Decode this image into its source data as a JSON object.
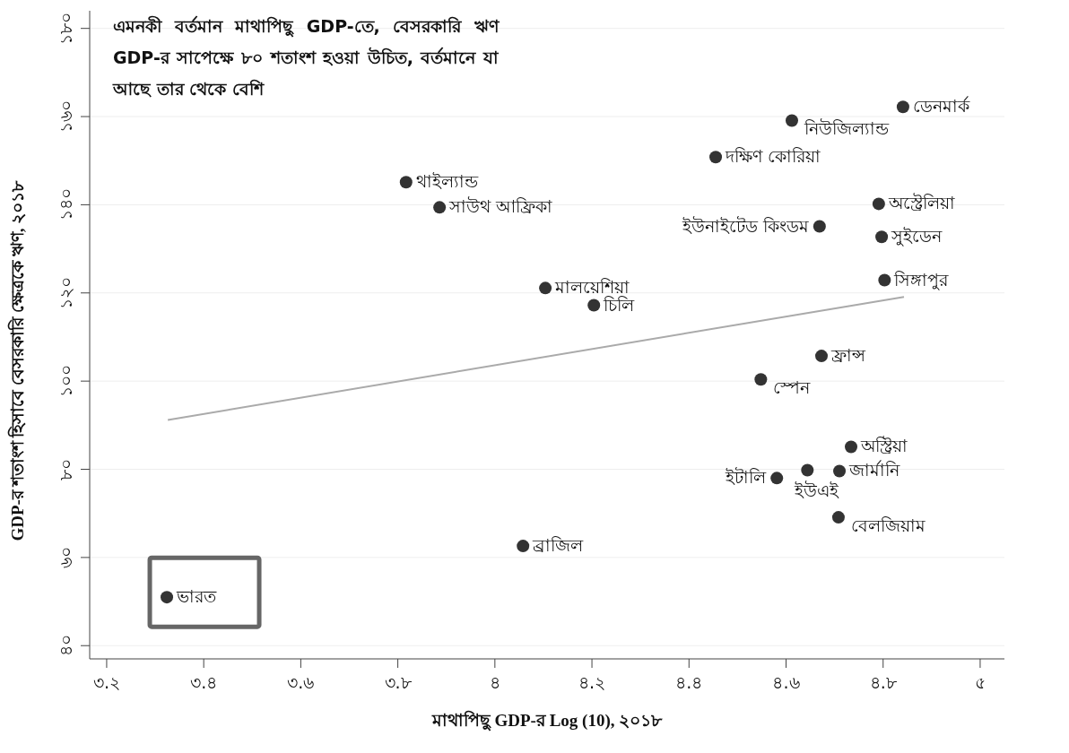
{
  "chart_data": {
    "type": "scatter",
    "title": "এমনকী বর্তমান মাথাপিছু GDP-তে, বেসরকারি ঋণ GDP-র সাপেক্ষে ৮০ শতাংশ হওয়া উচিত, বর্তমানে যা আছে তার থেকে বেশি",
    "xlabel": "মাথাপিছু GDP-র Log (10), ২০১৮",
    "ylabel": "GDP-র শতাংশ হিসাবে বেসরকারি ক্ষেত্রকে ঋণ, ২০১৮",
    "xlim": [
      3.165,
      5.05
    ],
    "xticks": [
      {
        "value": 3.2,
        "label": "৩.২"
      },
      {
        "value": 3.4,
        "label": "৩.৪"
      },
      {
        "value": 3.6,
        "label": "৩.৬"
      },
      {
        "value": 3.8,
        "label": "৩.৮"
      },
      {
        "value": 4,
        "label": "৪"
      },
      {
        "value": 4.2,
        "label": "৪.২"
      },
      {
        "value": 4.4,
        "label": "৪.৪"
      },
      {
        "value": 4.6,
        "label": "৪.৬"
      },
      {
        "value": 4.8,
        "label": "৪.৮"
      },
      {
        "value": 5,
        "label": "৫"
      }
    ],
    "ylim": [
      37,
      184
    ],
    "yticks": [
      {
        "value": 40,
        "label": "৪০"
      },
      {
        "value": 60,
        "label": "৬০"
      },
      {
        "value": 80,
        "label": "৮০"
      },
      {
        "value": 100,
        "label": "১০০"
      },
      {
        "value": 120,
        "label": "১২০"
      },
      {
        "value": 140,
        "label": "১৪০"
      },
      {
        "value": 160,
        "label": "১৬০"
      },
      {
        "value": 180,
        "label": "১৮০"
      }
    ],
    "grid": "y",
    "marker": "circle",
    "series": [
      {
        "color": "#333333",
        "x": [
          3.324,
          4.058,
          3.817,
          3.886,
          4.104,
          4.204,
          4.455,
          4.612,
          4.841,
          4.791,
          4.669,
          4.797,
          4.803,
          4.673,
          4.548,
          4.734,
          4.71,
          4.644,
          4.581,
          4.708
        ],
        "values": [
          51.0,
          62.6,
          145.1,
          139.4,
          121.1,
          117.2,
          150.8,
          159.1,
          162.2,
          140.2,
          135.1,
          132.7,
          122.9,
          105.7,
          100.4,
          85.1,
          79.6,
          79.8,
          78.0,
          69.1
        ]
      },
      {
        "type": "line",
        "marker": "none",
        "color": "#aaaaaa",
        "x": [
          3.326,
          4.843
        ],
        "values": [
          91.2,
          119.1
        ]
      }
    ],
    "annotations": [
      {
        "text": "ভারত",
        "x": 3.324,
        "y": 51.0
      },
      {
        "text": "ব্রাজিল",
        "x": 4.058,
        "y": 62.6
      },
      {
        "text": "থাইল্যান্ড",
        "x": 3.817,
        "y": 145.1
      },
      {
        "text": "সাউথ আফ্রিকা",
        "x": 3.886,
        "y": 139.4
      },
      {
        "text": "মালয়েশিয়া",
        "x": 4.104,
        "y": 121.1
      },
      {
        "text": "চিলি",
        "x": 4.204,
        "y": 117.2
      },
      {
        "text": "দক্ষিণ কোরিয়া",
        "x": 4.455,
        "y": 150.8
      },
      {
        "text": "নিউজিল্যান্ড",
        "x": 4.612,
        "y": 159.1
      },
      {
        "text": "ডেনমার্ক",
        "x": 4.841,
        "y": 162.2
      },
      {
        "text": "অস্ট্রেলিয়া",
        "x": 4.791,
        "y": 140.2
      },
      {
        "text": "ইউনাইটেড কিংডম",
        "x": 4.669,
        "y": 135.1
      },
      {
        "text": "সুইডেন",
        "x": 4.797,
        "y": 132.7
      },
      {
        "text": "সিঙ্গাপুর",
        "x": 4.803,
        "y": 122.9
      },
      {
        "text": "ফ্রান্স",
        "x": 4.673,
        "y": 105.7
      },
      {
        "text": "স্পেন",
        "x": 4.548,
        "y": 100.4
      },
      {
        "text": "অস্ট্রিয়া",
        "x": 4.734,
        "y": 85.1
      },
      {
        "text": "জার্মানি",
        "x": 4.71,
        "y": 79.6
      },
      {
        "text": "ইউএই",
        "x": 4.644,
        "y": 79.8
      },
      {
        "text": "ইটালি",
        "x": 4.581,
        "y": 78.0
      },
      {
        "text": "বেলজিয়াম",
        "x": 4.708,
        "y": 69.1
      }
    ]
  }
}
